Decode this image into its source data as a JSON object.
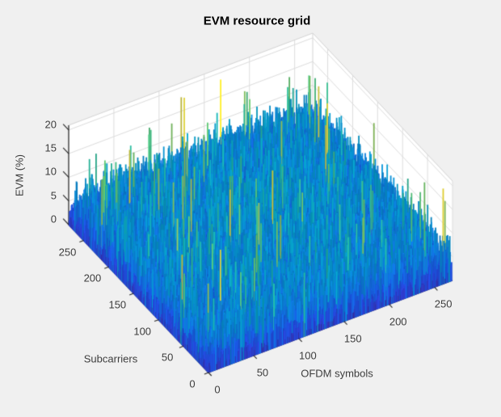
{
  "window": {
    "background": "#f0f0f0"
  },
  "chart_data": {
    "type": "surface",
    "title": "EVM resource grid",
    "xlabel": "OFDM symbols",
    "ylabel": "Subcarriers",
    "zlabel": "EVM (%)",
    "x_ticks": [
      0,
      50,
      100,
      150,
      200,
      250
    ],
    "y_ticks": [
      0,
      50,
      100,
      150,
      200,
      250
    ],
    "z_ticks": [
      0,
      5,
      10,
      15,
      20
    ],
    "xlim": [
      0,
      270
    ],
    "ylim": [
      0,
      280
    ],
    "zlim": [
      0,
      21
    ],
    "view": {
      "azimuth": -37.5,
      "elevation": 30
    },
    "grid": true,
    "colormap": "parula",
    "color_axis": [
      0,
      20
    ],
    "colors": {
      "figure_bg": "#f0f0f0",
      "wall": "#ffffff",
      "gridline": "#dddddd",
      "box_edge": "#d4d4d4",
      "axis_line": "#262626",
      "label_text": "#3d3d3d",
      "title_text": "#000000",
      "parula_stops": [
        "#352a87",
        "#2d3ed0",
        "#1c53de",
        "#126fda",
        "#0788cd",
        "#079ebd",
        "#21b29e",
        "#5fbe69",
        "#beb948",
        "#f9e525"
      ]
    },
    "surface": {
      "description": "Dense noisy EVM surface over ~270 OFDM symbols x ~280 subcarriers. Noise floor mostly 1-4% EVM (dark blue), frequent narrow spikes 6-11% (azure/cyan streaks), sparse spikes 12-16% (teal/green), rare flecks near 17-20% (orange/yellow). An isolated tall ~16.5% spike stands on the far edge near OFDM symbol 267, subcarrier 152.",
      "noise_floor_range": [
        1,
        4
      ],
      "frequent_spike_range": [
        6,
        11
      ],
      "rare_spike_range": [
        12,
        20
      ],
      "max_spike": {
        "symbol": 267,
        "subcarrier": 152,
        "evm": 16.5
      },
      "seed": 1337
    }
  }
}
